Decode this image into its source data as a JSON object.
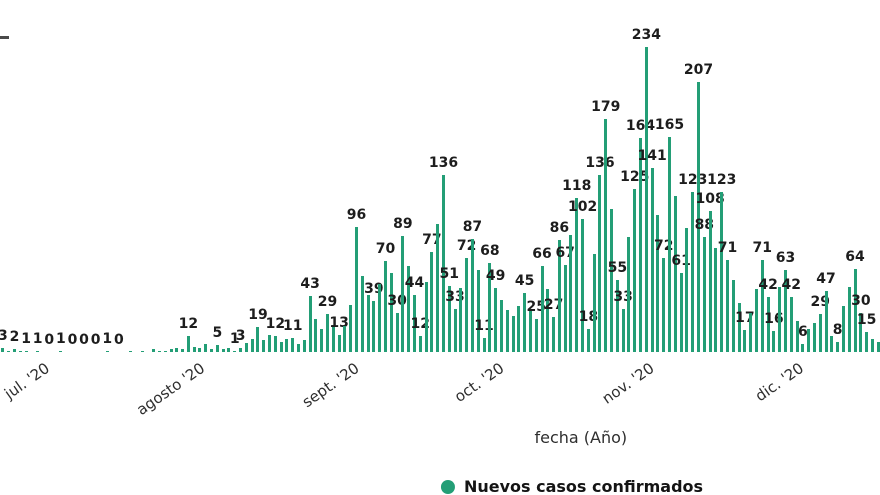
{
  "chart_data": {
    "type": "bar",
    "title": "",
    "xlabel": "fecha (Año)",
    "ylim": [
      0,
      238
    ],
    "grid": false,
    "bar_color": "#239e76",
    "label_color": "#1d1d1d",
    "legend": [
      {
        "label": "Nuevos casos confirmados",
        "color": "#239e76"
      }
    ],
    "x_ticks": [
      {
        "label": "jul. '20",
        "pos": 0.048
      },
      {
        "label": "agosto '20",
        "pos": 0.225
      },
      {
        "label": "sept. '20",
        "pos": 0.4
      },
      {
        "label": "oct. '20",
        "pos": 0.565
      },
      {
        "label": "nov. '20",
        "pos": 0.735
      },
      {
        "label": "dic. '20",
        "pos": 0.905
      }
    ],
    "bars": [
      {
        "v": 3,
        "l": "3"
      },
      {
        "v": 1
      },
      {
        "v": 2,
        "l": "2"
      },
      {
        "v": 1
      },
      {
        "v": 1,
        "l": "1"
      },
      {
        "v": 0
      },
      {
        "v": 1,
        "l": "1"
      },
      {
        "v": 0
      },
      {
        "v": 0,
        "l": "0"
      },
      {
        "v": 0
      },
      {
        "v": 1,
        "l": "1"
      },
      {
        "v": 0
      },
      {
        "v": 0,
        "l": "0"
      },
      {
        "v": 0
      },
      {
        "v": 0,
        "l": "0"
      },
      {
        "v": 0
      },
      {
        "v": 0,
        "l": "0"
      },
      {
        "v": 0
      },
      {
        "v": 1,
        "l": "1"
      },
      {
        "v": 0
      },
      {
        "v": 0,
        "l": "0"
      },
      {
        "v": 0
      },
      {
        "v": 1
      },
      {
        "v": 0
      },
      {
        "v": 1
      },
      {
        "v": 0
      },
      {
        "v": 2
      },
      {
        "v": 1
      },
      {
        "v": 1
      },
      {
        "v": 2
      },
      {
        "v": 3
      },
      {
        "v": 2
      },
      {
        "v": 12,
        "l": "12"
      },
      {
        "v": 4
      },
      {
        "v": 3
      },
      {
        "v": 6
      },
      {
        "v": 2
      },
      {
        "v": 5,
        "l": "5"
      },
      {
        "v": 2
      },
      {
        "v": 3
      },
      {
        "v": 1,
        "l": "1"
      },
      {
        "v": 3,
        "l": "3"
      },
      {
        "v": 7
      },
      {
        "v": 10
      },
      {
        "v": 19,
        "l": "19"
      },
      {
        "v": 9
      },
      {
        "v": 13
      },
      {
        "v": 12,
        "l": "12"
      },
      {
        "v": 8
      },
      {
        "v": 10
      },
      {
        "v": 11,
        "l": "11"
      },
      {
        "v": 6
      },
      {
        "v": 9
      },
      {
        "v": 43,
        "l": "43"
      },
      {
        "v": 25
      },
      {
        "v": 18
      },
      {
        "v": 29,
        "l": "29"
      },
      {
        "v": 21
      },
      {
        "v": 13,
        "l": "13"
      },
      {
        "v": 20
      },
      {
        "v": 36
      },
      {
        "v": 96,
        "l": "96"
      },
      {
        "v": 58
      },
      {
        "v": 44
      },
      {
        "v": 39,
        "l": "39"
      },
      {
        "v": 52
      },
      {
        "v": 70,
        "l": "70"
      },
      {
        "v": 61
      },
      {
        "v": 30,
        "l": "30"
      },
      {
        "v": 89,
        "l": "89"
      },
      {
        "v": 66
      },
      {
        "v": 44,
        "l": "44"
      },
      {
        "v": 12,
        "l": "12"
      },
      {
        "v": 54
      },
      {
        "v": 77,
        "l": "77"
      },
      {
        "v": 98
      },
      {
        "v": 136,
        "l": "136"
      },
      {
        "v": 51,
        "l": "51"
      },
      {
        "v": 33,
        "l": "33"
      },
      {
        "v": 49
      },
      {
        "v": 72,
        "l": "72"
      },
      {
        "v": 87,
        "l": "87"
      },
      {
        "v": 63
      },
      {
        "v": 11,
        "l": "11"
      },
      {
        "v": 68,
        "l": "68"
      },
      {
        "v": 49,
        "l": "49"
      },
      {
        "v": 40
      },
      {
        "v": 32
      },
      {
        "v": 28
      },
      {
        "v": 35
      },
      {
        "v": 45,
        "l": "45"
      },
      {
        "v": 33
      },
      {
        "v": 25,
        "l": "25"
      },
      {
        "v": 66,
        "l": "66"
      },
      {
        "v": 48
      },
      {
        "v": 27,
        "l": "27"
      },
      {
        "v": 86,
        "l": "86"
      },
      {
        "v": 67,
        "l": "67"
      },
      {
        "v": 90
      },
      {
        "v": 118,
        "l": "118"
      },
      {
        "v": 102,
        "l": "102"
      },
      {
        "v": 18,
        "l": "18"
      },
      {
        "v": 75
      },
      {
        "v": 136,
        "l": "136"
      },
      {
        "v": 179,
        "l": "179"
      },
      {
        "v": 110
      },
      {
        "v": 55,
        "l": "55"
      },
      {
        "v": 33,
        "l": "33"
      },
      {
        "v": 88
      },
      {
        "v": 125,
        "l": "125"
      },
      {
        "v": 164,
        "l": "164"
      },
      {
        "v": 234,
        "l": "234"
      },
      {
        "v": 141,
        "l": "141"
      },
      {
        "v": 105
      },
      {
        "v": 72,
        "l": "72"
      },
      {
        "v": 165,
        "l": "165"
      },
      {
        "v": 120
      },
      {
        "v": 61,
        "l": "61"
      },
      {
        "v": 95
      },
      {
        "v": 123,
        "l": "123"
      },
      {
        "v": 207,
        "l": "207"
      },
      {
        "v": 88,
        "l": "88"
      },
      {
        "v": 108,
        "l": "108"
      },
      {
        "v": 80
      },
      {
        "v": 123,
        "l": "123"
      },
      {
        "v": 71,
        "l": "71"
      },
      {
        "v": 55
      },
      {
        "v": 38
      },
      {
        "v": 17,
        "l": "17"
      },
      {
        "v": 30
      },
      {
        "v": 48
      },
      {
        "v": 71,
        "l": "71"
      },
      {
        "v": 42,
        "l": "42"
      },
      {
        "v": 16,
        "l": "16"
      },
      {
        "v": 50
      },
      {
        "v": 63,
        "l": "63"
      },
      {
        "v": 42,
        "l": "42"
      },
      {
        "v": 24
      },
      {
        "v": 6,
        "l": "6"
      },
      {
        "v": 18
      },
      {
        "v": 22
      },
      {
        "v": 29,
        "l": "29"
      },
      {
        "v": 47,
        "l": "47"
      },
      {
        "v": 12
      },
      {
        "v": 8,
        "l": "8"
      },
      {
        "v": 35
      },
      {
        "v": 50
      },
      {
        "v": 64,
        "l": "64"
      },
      {
        "v": 30,
        "l": "30"
      },
      {
        "v": 15,
        "l": "15"
      },
      {
        "v": 10
      },
      {
        "v": 8
      }
    ]
  }
}
